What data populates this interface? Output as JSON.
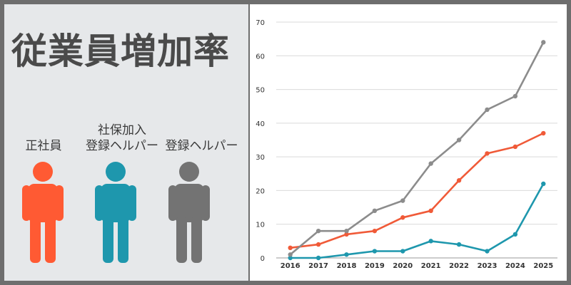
{
  "title": "従業員増加率",
  "legend": [
    {
      "label_lines": [
        "正社員"
      ],
      "color": "#ff5a33",
      "icon": "person-icon"
    },
    {
      "label_lines": [
        "社保加入",
        "登録ヘルパー"
      ],
      "color": "#1e97ad",
      "icon": "person-icon"
    },
    {
      "label_lines": [
        "登録ヘルパー"
      ],
      "color": "#737373",
      "icon": "person-icon"
    }
  ],
  "chart_data": {
    "type": "line",
    "title": "",
    "xlabel": "",
    "ylabel": "",
    "x": [
      "2016",
      "2017",
      "2018",
      "2019",
      "2020",
      "2021",
      "2022",
      "2023",
      "2024",
      "2025"
    ],
    "ylim": [
      0,
      70
    ],
    "yticks": [
      0,
      10,
      20,
      30,
      40,
      50,
      60,
      70
    ],
    "grid": "horizontal",
    "series": [
      {
        "legend_ref": "正社員",
        "color": "#f05a38",
        "values": [
          3,
          4,
          7,
          8,
          12,
          14,
          23,
          31,
          33,
          37
        ]
      },
      {
        "legend_ref": "社保加入登録ヘルパー",
        "color": "#1e97ad",
        "values": [
          0,
          0,
          1,
          2,
          2,
          5,
          4,
          2,
          7,
          22
        ]
      },
      {
        "legend_ref": "登録ヘルパー",
        "color": "#8c8c8c",
        "values": [
          1,
          8,
          8,
          14,
          17,
          28,
          35,
          44,
          48,
          64
        ]
      }
    ]
  }
}
